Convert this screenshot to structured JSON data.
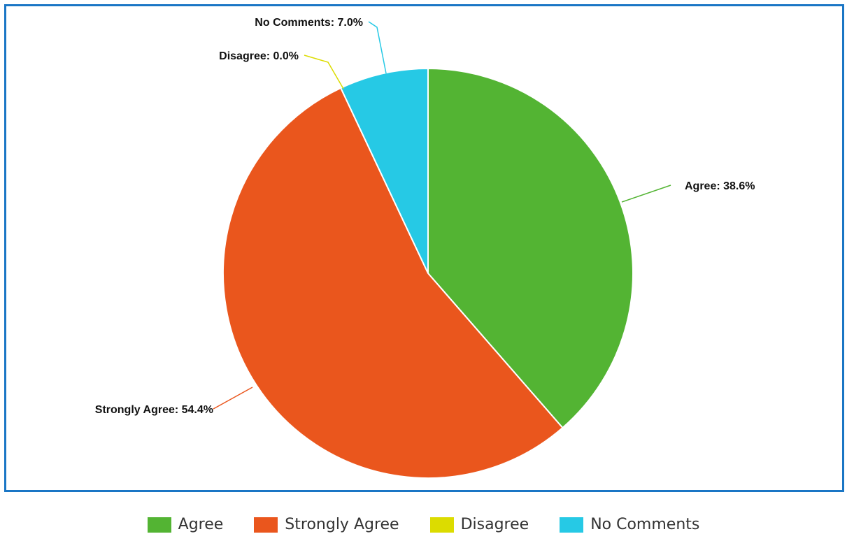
{
  "chart_data": {
    "type": "pie",
    "slices": [
      {
        "name": "Agree",
        "value": 38.6,
        "label": "Agree: 38.6%",
        "color": "#53b433"
      },
      {
        "name": "Strongly Agree",
        "value": 54.4,
        "label": "Strongly Agree: 54.4%",
        "color": "#ea561d"
      },
      {
        "name": "Disagree",
        "value": 0.0,
        "label": "Disagree: 0.0%",
        "color": "#dcdc00"
      },
      {
        "name": "No Comments",
        "value": 7.0,
        "label": "No Comments: 7.0%",
        "color": "#26c9e5"
      }
    ],
    "legend": {
      "placement": "bottom-center",
      "entries": [
        "Agree",
        "Strongly Agree",
        "Disagree",
        "No Comments"
      ]
    }
  }
}
